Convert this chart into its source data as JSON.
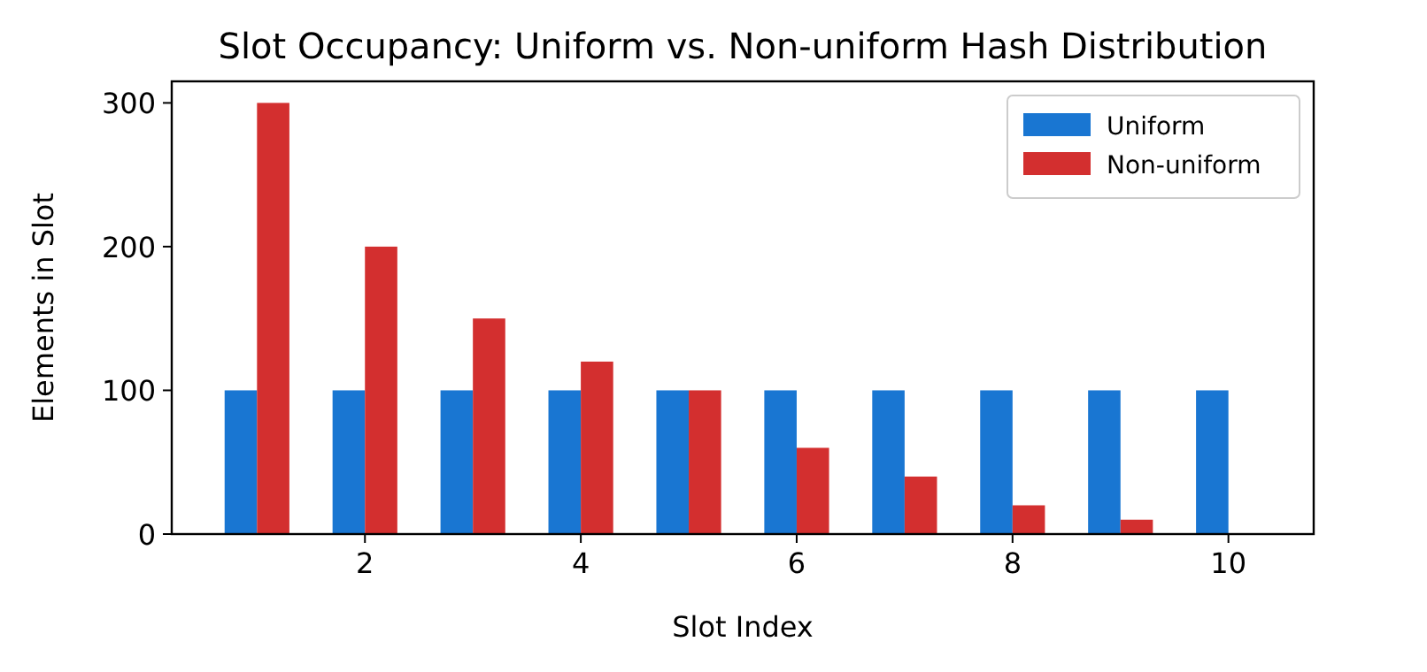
{
  "chart_data": {
    "type": "bar",
    "title": "Slot Occupancy: Uniform vs. Non-uniform Hash Distribution",
    "xlabel": "Slot Index",
    "ylabel": "Elements in Slot",
    "x": [
      1,
      2,
      3,
      4,
      5,
      6,
      7,
      8,
      9,
      10
    ],
    "series": [
      {
        "name": "Uniform",
        "color": "#1976d2",
        "values": [
          100,
          100,
          100,
          100,
          100,
          100,
          100,
          100,
          100,
          100
        ]
      },
      {
        "name": "Non-uniform",
        "color": "#d32f2f",
        "values": [
          300,
          200,
          150,
          120,
          100,
          60,
          40,
          20,
          10,
          0
        ]
      }
    ],
    "xlim": [
      0.21,
      10.79
    ],
    "xticks": [
      2,
      4,
      6,
      8,
      10
    ],
    "ylim": [
      0,
      315
    ],
    "yticks": [
      0,
      100,
      200,
      300
    ],
    "grid": false,
    "legend": "top right"
  }
}
